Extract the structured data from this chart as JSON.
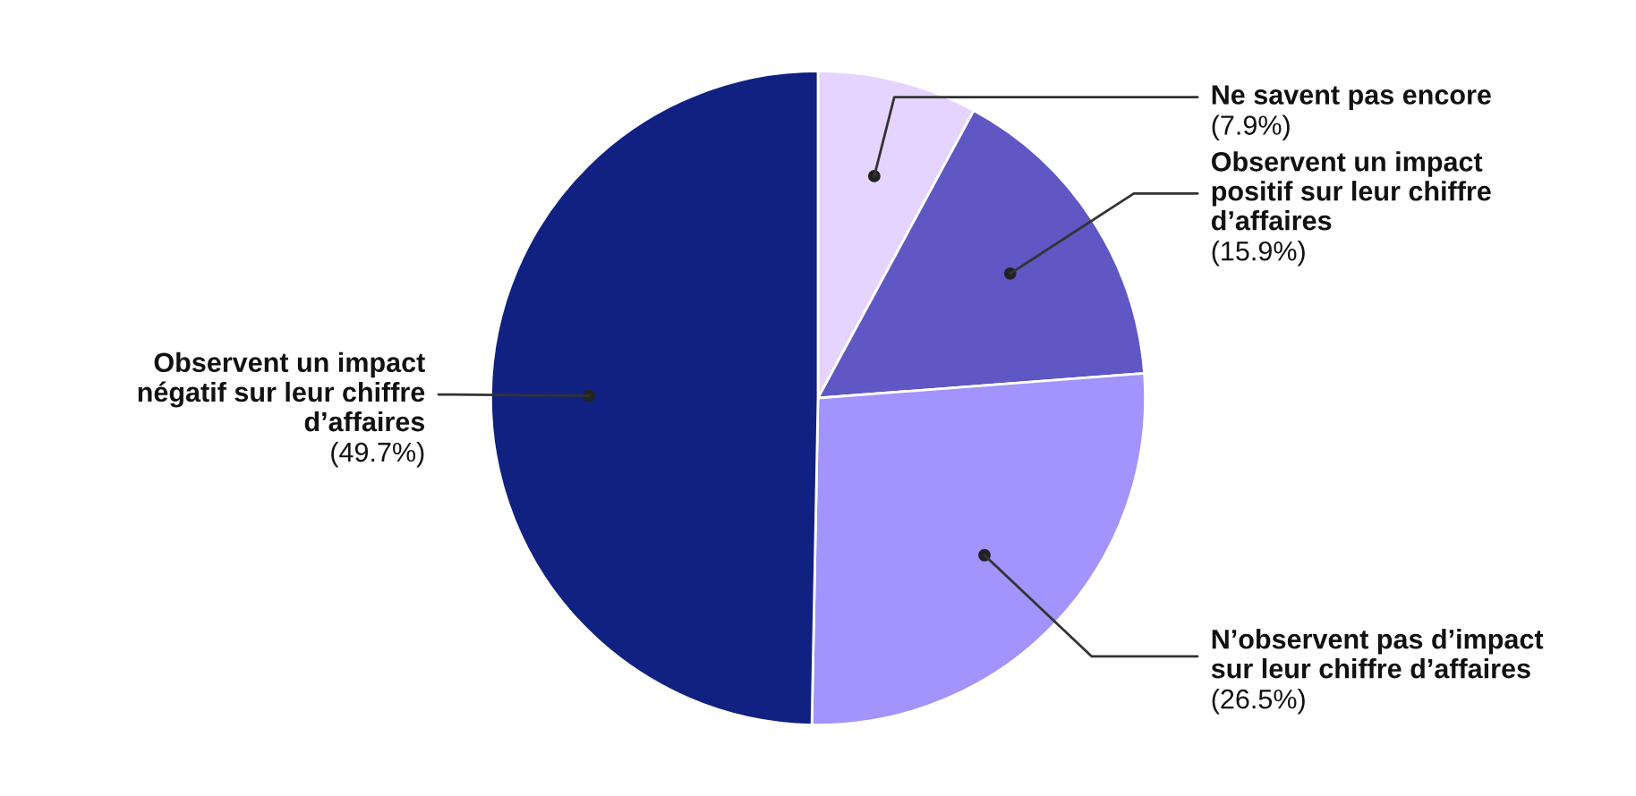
{
  "chart_data": {
    "type": "pie",
    "categories": [
      "Ne savent pas encore",
      "Observent un impact\npositif sur leur chiffre\nd’affaires",
      "N’observent pas d’impact\nsur leur chiffre d’affaires",
      "Observent un impact\nnégatif sur leur chiffre\nd’affaires"
    ],
    "values": [
      7.9,
      15.9,
      26.5,
      49.7
    ],
    "value_labels": [
      "(7.9%)",
      "(15.9%)",
      "(26.5%)",
      "(49.7%)"
    ],
    "colors": [
      "#e5d4ff",
      "#5e57c4",
      "#a393fc",
      "#112182"
    ],
    "legend": false
  }
}
